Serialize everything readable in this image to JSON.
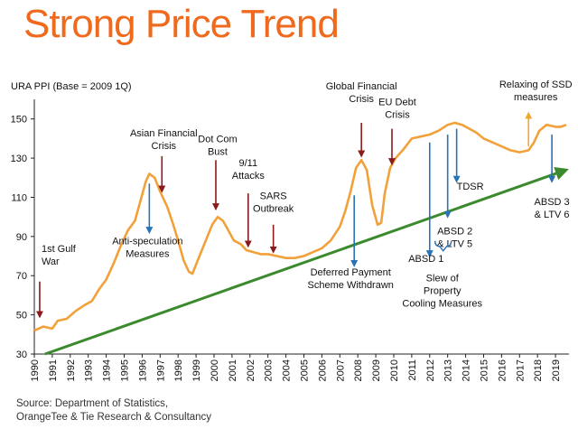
{
  "title": "Strong Price Trend",
  "source": [
    "Source: Department of Statistics,",
    "OrangeTee & Tie Research & Consultancy"
  ],
  "colors": {
    "title": "#ef6a1c",
    "price_line": "#f2a13a",
    "trend_line": "#3c8a2e",
    "red_arrow": "#8b1a1a",
    "blue_arrow": "#2a73b8",
    "orange_arrow": "#f0a830",
    "bracket": "#2a73b8"
  },
  "chart_data": {
    "type": "line",
    "ylabel": "URA PPI (Base = 2009 1Q)",
    "ylim": [
      30,
      160
    ],
    "xlim": [
      1990,
      2019.75
    ],
    "yticks": [
      30,
      50,
      70,
      90,
      110,
      130,
      150
    ],
    "xticks": [
      "1990",
      "1991",
      "1992",
      "1993",
      "1994",
      "1995",
      "1996",
      "1997",
      "1998",
      "1999",
      "2000",
      "2001",
      "2002",
      "2003",
      "2004",
      "2005",
      "2006",
      "2007",
      "2008",
      "2009",
      "2010",
      "2011",
      "2012",
      "2013",
      "2014",
      "2015",
      "2016",
      "2017",
      "2018",
      "2019"
    ],
    "grid": false,
    "series": [
      {
        "points": [
          [
            1990,
            42
          ],
          [
            1990.5,
            44
          ],
          [
            1991,
            43
          ],
          [
            1991.3,
            47
          ],
          [
            1991.8,
            48
          ],
          [
            1992.3,
            52
          ],
          [
            1992.8,
            55
          ],
          [
            1993.2,
            57
          ],
          [
            1993.6,
            63
          ],
          [
            1994,
            68
          ],
          [
            1994.4,
            76
          ],
          [
            1994.8,
            85
          ],
          [
            1995.2,
            93
          ],
          [
            1995.6,
            98
          ],
          [
            1995.9,
            108
          ],
          [
            1996.2,
            118
          ],
          [
            1996.4,
            122
          ],
          [
            1996.7,
            120
          ],
          [
            1997,
            113
          ],
          [
            1997.4,
            105
          ],
          [
            1997.7,
            97
          ],
          [
            1998,
            88
          ],
          [
            1998.3,
            78
          ],
          [
            1998.6,
            72
          ],
          [
            1998.8,
            71
          ],
          [
            1999.1,
            78
          ],
          [
            1999.5,
            87
          ],
          [
            1999.9,
            96
          ],
          [
            2000.2,
            100
          ],
          [
            2000.5,
            98
          ],
          [
            2000.8,
            93
          ],
          [
            2001.1,
            88
          ],
          [
            2001.5,
            86
          ],
          [
            2001.8,
            83
          ],
          [
            2002.2,
            82
          ],
          [
            2002.6,
            81
          ],
          [
            2003,
            81
          ],
          [
            2003.5,
            80
          ],
          [
            2004,
            79
          ],
          [
            2004.5,
            79
          ],
          [
            2005,
            80
          ],
          [
            2005.5,
            82
          ],
          [
            2006,
            84
          ],
          [
            2006.5,
            88
          ],
          [
            2007,
            95
          ],
          [
            2007.3,
            103
          ],
          [
            2007.6,
            113
          ],
          [
            2007.9,
            125
          ],
          [
            2008.2,
            129
          ],
          [
            2008.5,
            124
          ],
          [
            2008.8,
            106
          ],
          [
            2009.1,
            96
          ],
          [
            2009.3,
            97
          ],
          [
            2009.5,
            112
          ],
          [
            2009.8,
            125
          ],
          [
            2010.1,
            130
          ],
          [
            2010.5,
            134
          ],
          [
            2011,
            140
          ],
          [
            2011.5,
            141
          ],
          [
            2012,
            142
          ],
          [
            2012.5,
            144
          ],
          [
            2013,
            147
          ],
          [
            2013.4,
            148
          ],
          [
            2013.8,
            147
          ],
          [
            2014.2,
            145
          ],
          [
            2014.6,
            143
          ],
          [
            2015,
            140
          ],
          [
            2015.5,
            138
          ],
          [
            2016,
            136
          ],
          [
            2016.5,
            134
          ],
          [
            2017,
            133
          ],
          [
            2017.5,
            134
          ],
          [
            2017.8,
            138
          ],
          [
            2018.1,
            144
          ],
          [
            2018.5,
            147
          ],
          [
            2019,
            146
          ],
          [
            2019.3,
            146
          ],
          [
            2019.6,
            147
          ]
        ]
      }
    ],
    "trend": [
      [
        1990.6,
        30
      ],
      [
        2019.6,
        124
      ]
    ],
    "annotations": [
      {
        "lines": [
          "1st Gulf",
          "War"
        ],
        "x": 1990.3,
        "arrow": "red",
        "dir": "down",
        "from": 67,
        "to": 49,
        "label_x": 1990.4,
        "label_y": 82,
        "anchor": "start"
      },
      {
        "lines": [
          "Asian Financial",
          "Crisis"
        ],
        "x": 1997.1,
        "arrow": "red",
        "dir": "down",
        "from": 131,
        "to": 113,
        "label_x": 1997.2,
        "label_y": 141,
        "anchor": "middle"
      },
      {
        "lines": [
          "Dot Com",
          "Bust"
        ],
        "x": 2000.1,
        "arrow": "red",
        "dir": "down",
        "from": 129,
        "to": 104,
        "label_x": 2000.2,
        "label_y": 138,
        "anchor": "middle"
      },
      {
        "lines": [
          "9/11",
          "Attacks"
        ],
        "x": 2001.9,
        "arrow": "red",
        "dir": "down",
        "from": 112,
        "to": 85,
        "label_x": 2001.9,
        "label_y": 126,
        "anchor": "middle"
      },
      {
        "lines": [
          "SARS",
          "Outbreak"
        ],
        "x": 2003.3,
        "arrow": "red",
        "dir": "down",
        "from": 96,
        "to": 82,
        "label_x": 2003.3,
        "label_y": 109,
        "anchor": "middle"
      },
      {
        "lines": [
          "Global Financial",
          "Crisis"
        ],
        "x": 2008.2,
        "arrow": "red",
        "dir": "down",
        "from": 148,
        "to": 131,
        "label_x": 2008.2,
        "label_y": 165,
        "anchor": "middle"
      },
      {
        "lines": [
          "EU Debt",
          "Crisis"
        ],
        "x": 2009.9,
        "arrow": "red",
        "dir": "down",
        "from": 145,
        "to": 127,
        "label_x": 2010.2,
        "label_y": 157,
        "anchor": "middle"
      },
      {
        "lines": [
          "Relaxing of SSD",
          "measures"
        ],
        "x": 2017.5,
        "arrow": "orange",
        "dir": "up",
        "from": 136,
        "to": 153,
        "label_x": 2017.9,
        "label_y": 166,
        "anchor": "middle"
      },
      {
        "lines": [
          "Anti-speculation",
          "Measures"
        ],
        "x": 1996.4,
        "arrow": "blue",
        "dir": "down",
        "from": 117,
        "to": 92,
        "label_x": 1996.3,
        "label_y": 86,
        "anchor": "middle"
      },
      {
        "lines": [
          "Deferred Payment",
          "Scheme Withdrawn"
        ],
        "x": 2007.8,
        "arrow": "blue",
        "dir": "down",
        "from": 111,
        "to": 75,
        "label_x": 2007.6,
        "label_y": 70,
        "anchor": "middle"
      },
      {
        "lines": [
          "ABSD 1"
        ],
        "x": 2012,
        "arrow": "blue",
        "dir": "down",
        "from": 138,
        "to": 80,
        "label_x": 2011.8,
        "label_y": 77,
        "anchor": "middle"
      },
      {
        "lines": [
          "ABSD 2",
          "& LTV 5"
        ],
        "x": 2013,
        "arrow": "blue",
        "dir": "down",
        "from": 142,
        "to": 100,
        "label_x": 2013.4,
        "label_y": 91,
        "anchor": "middle"
      },
      {
        "lines": [
          "TDSR"
        ],
        "x": 2013.5,
        "arrow": "blue",
        "dir": "down",
        "from": 145,
        "to": 118,
        "label_x": 2013.5,
        "label_y": 114,
        "anchor": "start"
      },
      {
        "lines": [
          "ABSD 3",
          "& LTV 6"
        ],
        "x": 2018.8,
        "arrow": "blue",
        "dir": "down",
        "from": 142,
        "to": 118,
        "label_x": 2018.8,
        "label_y": 106,
        "anchor": "middle"
      }
    ],
    "group_label": {
      "lines": [
        "Slew of",
        "Property",
        "Cooling Measures"
      ],
      "bracket_from": 2012.3,
      "bracket_to": 2013.2,
      "bracket_y": 85,
      "label_x": 2012.7,
      "label_y": 67
    }
  }
}
